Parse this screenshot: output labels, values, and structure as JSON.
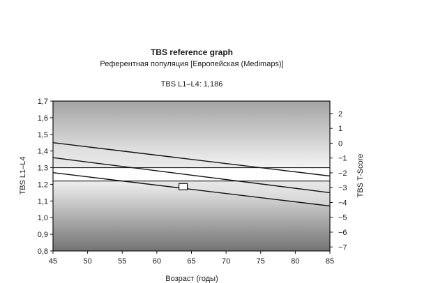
{
  "chart_data": {
    "type": "line",
    "title": "TBS reference graph",
    "subtitle": "Референтная популяция [Европейская (Medimaps)]",
    "result_label": "TBS L1–L4: 1,186",
    "xlabel": "Возраст (годы)",
    "ylabel_left": "TBS L1–L4",
    "ylabel_right": "TBS T-Score",
    "xlim": [
      45,
      85
    ],
    "ylim": [
      0.8,
      1.7
    ],
    "x_ticks": [
      45,
      50,
      55,
      60,
      65,
      70,
      75,
      80,
      85
    ],
    "y_ticks": [
      0.8,
      0.9,
      1.0,
      1.1,
      1.2,
      1.3,
      1.4,
      1.5,
      1.6,
      1.7
    ],
    "y_tick_labels": [
      "0,8",
      "0,9",
      "1,0",
      "1,1",
      "1,2",
      "1,3",
      "1,4",
      "1,5",
      "1,6",
      "1,7"
    ],
    "t_score_ticks": [
      {
        "label": "2",
        "tbs": 1.625
      },
      {
        "label": "1",
        "tbs": 1.536
      },
      {
        "label": "0",
        "tbs": 1.447
      },
      {
        "label": "−1",
        "tbs": 1.358
      },
      {
        "label": "−2",
        "tbs": 1.269
      },
      {
        "label": "−3",
        "tbs": 1.18
      },
      {
        "label": "−4",
        "tbs": 1.091
      },
      {
        "label": "−5",
        "tbs": 1.002
      },
      {
        "label": "−6",
        "tbs": 0.913
      },
      {
        "label": "−7",
        "tbs": 0.824
      }
    ],
    "series": [
      {
        "x": [
          45,
          85
        ],
        "y": [
          1.45,
          1.25
        ]
      },
      {
        "x": [
          45,
          85
        ],
        "y": [
          1.36,
          1.15
        ]
      },
      {
        "x": [
          45,
          85
        ],
        "y": [
          1.27,
          1.07
        ]
      }
    ],
    "thresholds": [
      1.3,
      1.22
    ],
    "marker": {
      "x": 63.8,
      "y": 1.186
    }
  }
}
